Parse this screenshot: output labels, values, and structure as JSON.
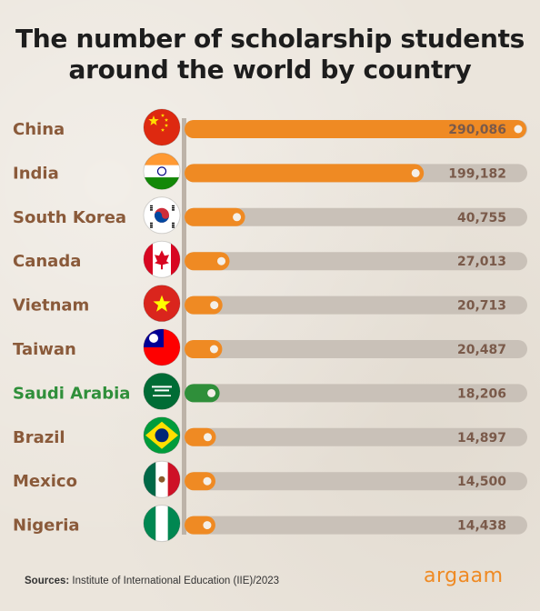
{
  "title_line1": "The number of scholarship students",
  "title_line2": "around the world by country",
  "source_label": "Sources:",
  "source_text": "Institute of International Education (IIE)/2023",
  "logo": "argaam",
  "colors": {
    "accent": "#ef8a23",
    "highlight": "#2f8f3a",
    "track": "#c9c1b8",
    "label": "#8a5a3a"
  },
  "chart_data": {
    "type": "bar",
    "orientation": "horizontal",
    "title": "The number of scholarship students around the world by country",
    "categories": [
      "China",
      "India",
      "South Korea",
      "Canada",
      "Vietnam",
      "Taiwan",
      "Saudi Arabia",
      "Brazil",
      "Mexico",
      "Nigeria"
    ],
    "values": [
      290086,
      199182,
      40755,
      27013,
      20713,
      20487,
      18206,
      14897,
      14500,
      14438
    ],
    "value_labels": [
      "290,086",
      "199,182",
      "40,755",
      "27,013",
      "20,713",
      "20,487",
      "18,206",
      "14,897",
      "14,500",
      "14,438"
    ],
    "flags": [
      "china-flag-icon",
      "india-flag-icon",
      "south-korea-flag-icon",
      "canada-flag-icon",
      "vietnam-flag-icon",
      "taiwan-flag-icon",
      "saudi-arabia-flag-icon",
      "brazil-flag-icon",
      "mexico-flag-icon",
      "nigeria-flag-icon"
    ],
    "highlighted": "Saudi Arabia",
    "xlim": [
      0,
      290086
    ],
    "grid": false,
    "legend": "none"
  }
}
